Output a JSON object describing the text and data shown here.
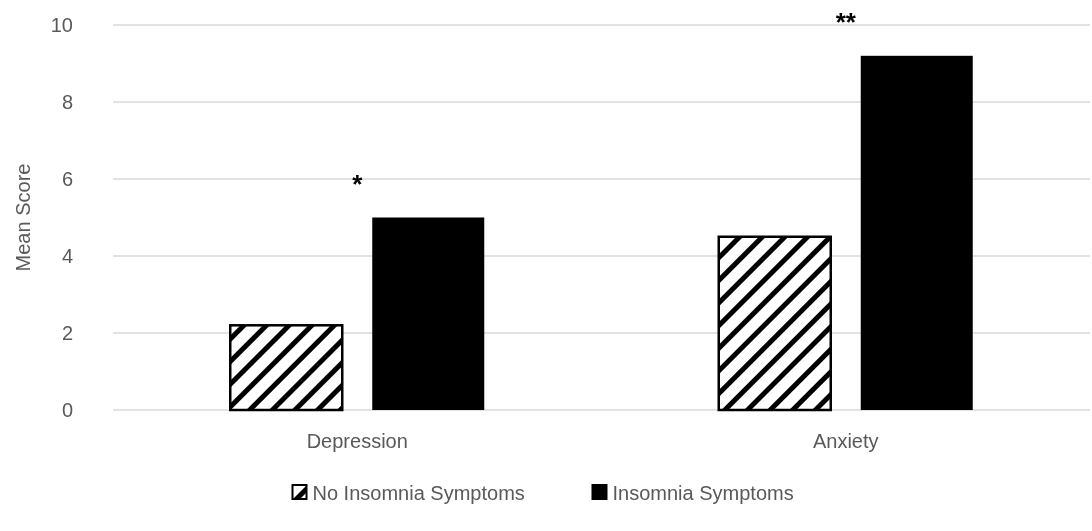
{
  "chart_data": {
    "type": "bar",
    "ylabel": "Mean Score",
    "categories": [
      "Depression",
      "Anxiety"
    ],
    "series": [
      {
        "name": "No Insomnia Symptoms",
        "color": "#000000",
        "values": [
          2.2,
          4.5
        ]
      },
      {
        "name": "Insomnia Symptoms",
        "color": "#000000",
        "values": [
          5.0,
          9.2
        ]
      }
    ],
    "ylim": [
      0,
      10
    ],
    "yticks": [
      0,
      2,
      4,
      6,
      8,
      10
    ],
    "grid": "y",
    "legend": "bottom",
    "annotations": [
      "*",
      "**"
    ]
  }
}
